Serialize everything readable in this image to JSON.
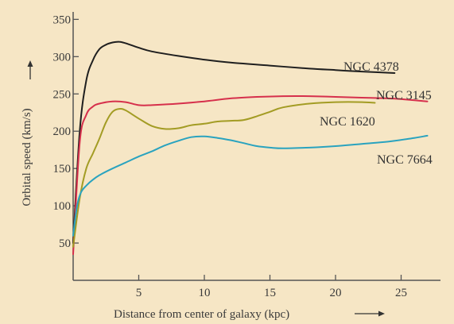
{
  "chart_data": {
    "type": "line",
    "title": "",
    "xlabel": "Distance from center of galaxy (kpc)",
    "ylabel": "Orbital speed (km/s)",
    "xlim": [
      0,
      28
    ],
    "ylim": [
      0,
      360
    ],
    "x_ticks": [
      5,
      10,
      15,
      20,
      25
    ],
    "y_ticks": [
      50,
      100,
      150,
      200,
      250,
      300,
      350
    ],
    "x_tick_labels": [
      "5",
      "10",
      "15",
      "20",
      "25"
    ],
    "y_tick_labels": [
      "50",
      "100",
      "150",
      "200",
      "250",
      "300",
      "350"
    ],
    "grid": false,
    "legend": "labels placed at line ends",
    "background_color": "#f6e6c5",
    "axis_color": "#555555",
    "series": [
      {
        "name": "NGC 4378",
        "color": "#1f1f1f",
        "x": [
          0,
          0.5,
          1,
          1.5,
          2,
          2.5,
          3,
          3.5,
          4,
          5,
          6,
          8,
          10,
          12,
          15,
          18,
          20,
          22,
          24.5
        ],
        "y": [
          50,
          200,
          268,
          295,
          310,
          316,
          319,
          320,
          318,
          312,
          307,
          301,
          296,
          292,
          288,
          284,
          282,
          280,
          278
        ]
      },
      {
        "name": "NGC 3145",
        "color": "#d6304c",
        "x": [
          0,
          0.5,
          1,
          1.5,
          2,
          3,
          4,
          5,
          6,
          8,
          10,
          12,
          14,
          16,
          18,
          20,
          22,
          24,
          25,
          27
        ],
        "y": [
          35,
          185,
          222,
          233,
          237,
          240,
          239,
          235,
          235,
          237,
          240,
          244,
          246,
          247,
          247,
          246,
          245,
          244,
          243,
          240
        ]
      },
      {
        "name": "NGC 1620",
        "color": "#a39c24",
        "x": [
          0,
          0.5,
          1,
          1.5,
          2,
          2.5,
          3,
          3.5,
          4,
          5,
          6,
          7,
          8,
          9,
          10,
          11,
          12,
          13,
          14,
          15,
          16,
          18,
          20,
          22,
          23
        ],
        "y": [
          45,
          110,
          150,
          170,
          190,
          212,
          226,
          230,
          228,
          217,
          207,
          203,
          204,
          208,
          210,
          213,
          214,
          215,
          220,
          226,
          232,
          237,
          239,
          239,
          238
        ]
      },
      {
        "name": "NGC 7664",
        "color": "#2aa3bf",
        "x": [
          0,
          0.3,
          0.6,
          1,
          1.5,
          2,
          3,
          4,
          5,
          6,
          7,
          8,
          9,
          10,
          11,
          12,
          13,
          14,
          15,
          16,
          18,
          20,
          22,
          24,
          26,
          27
        ],
        "y": [
          60,
          100,
          118,
          127,
          135,
          141,
          150,
          158,
          166,
          173,
          181,
          187,
          192,
          193,
          191,
          188,
          184,
          180,
          178,
          177,
          178,
          180,
          183,
          186,
          191,
          194
        ]
      }
    ]
  }
}
